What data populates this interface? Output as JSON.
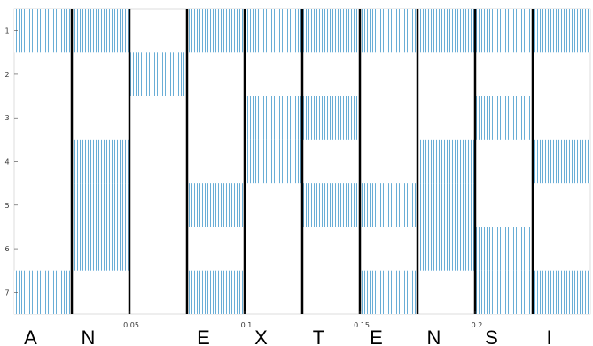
{
  "chart_data": {
    "type": "heatmap",
    "letters": [
      "A",
      "N",
      "",
      "E",
      "X",
      "T",
      "E",
      "N",
      "S",
      "I"
    ],
    "rows": [
      1,
      2,
      3,
      4,
      5,
      6,
      7
    ],
    "active_rows": [
      [
        1,
        7
      ],
      [
        1,
        4,
        5,
        6
      ],
      [
        2
      ],
      [
        1,
        5,
        7
      ],
      [
        1,
        3,
        4
      ],
      [
        1,
        3,
        5
      ],
      [
        1,
        5,
        7
      ],
      [
        1,
        4,
        5,
        6
      ],
      [
        1,
        3,
        6,
        7
      ],
      [
        1,
        4,
        7
      ]
    ],
    "x_ticks": [
      {
        "value": 0.05,
        "label": "0.05"
      },
      {
        "value": 0.1,
        "label": "0.1"
      },
      {
        "value": 0.15,
        "label": "0.15"
      },
      {
        "value": 0.2,
        "label": "0.2"
      }
    ],
    "y_ticks": [
      "1",
      "2",
      "3",
      "4",
      "5",
      "6",
      "7"
    ],
    "xlim": [
      0,
      0.25
    ],
    "ylim": [
      0.5,
      7.5
    ],
    "grid": false,
    "fill_color": "#6aaed6",
    "separator_color": "#000000"
  }
}
